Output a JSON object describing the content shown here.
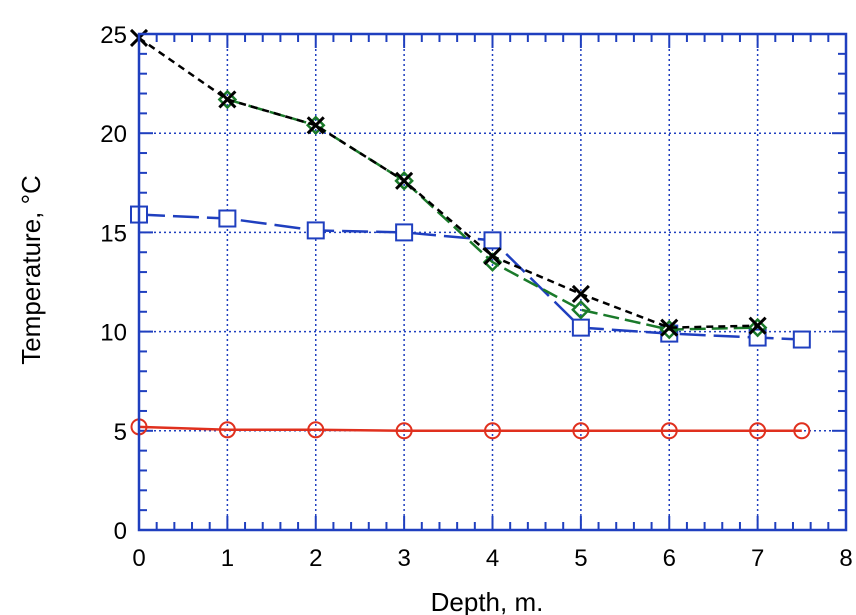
{
  "chart_data": {
    "type": "line",
    "xlabel": "Depth, m.",
    "ylabel": "Temperature,  °C",
    "xlim": [
      0,
      8
    ],
    "ylim": [
      0,
      25
    ],
    "x_ticks": [
      0,
      1,
      2,
      3,
      4,
      5,
      6,
      7,
      8
    ],
    "y_ticks": [
      0,
      5,
      10,
      15,
      20,
      25
    ],
    "grid": true,
    "colors": {
      "axes": "#1f3fbf",
      "grid": "#1f3fbf",
      "red": "#e0301e",
      "blue": "#1f3fbf",
      "green": "#1a7a2a",
      "black": "#000000"
    },
    "series": [
      {
        "color": "#e0301e",
        "marker": "circle",
        "line": "solid",
        "x": [
          0,
          1,
          2,
          3,
          4,
          5,
          6,
          7,
          7.5
        ],
        "values": [
          5.2,
          5.05,
          5.05,
          5.0,
          5.0,
          5.0,
          5.0,
          5.0,
          5.0
        ]
      },
      {
        "color": "#1f3fbf",
        "marker": "square",
        "line": "long-dash",
        "x": [
          0,
          1,
          2,
          3,
          4,
          5,
          6,
          7,
          7.5
        ],
        "values": [
          15.9,
          15.7,
          15.1,
          15.0,
          14.6,
          10.2,
          9.9,
          9.7,
          9.6
        ]
      },
      {
        "color": "#1a7a2a",
        "marker": "diamond",
        "line": "dash",
        "x": [
          1,
          2,
          3,
          4,
          5,
          6,
          7
        ],
        "values": [
          21.7,
          20.4,
          17.6,
          13.5,
          11.1,
          10.1,
          10.2
        ]
      },
      {
        "color": "#000000",
        "marker": "x",
        "line": "short-dash",
        "x": [
          0,
          1,
          2,
          3,
          4,
          5,
          6,
          7
        ],
        "values": [
          24.8,
          21.7,
          20.4,
          17.6,
          13.8,
          11.9,
          10.2,
          10.3
        ]
      }
    ]
  }
}
